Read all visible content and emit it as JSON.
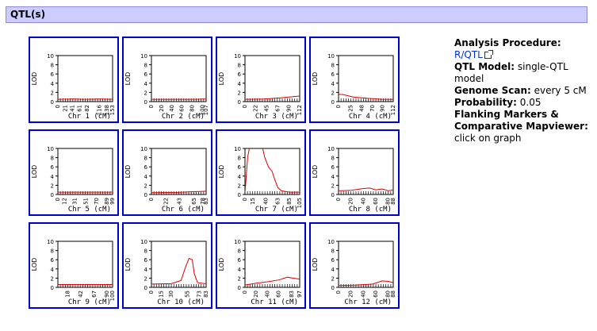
{
  "section": {
    "title": "QTL(s)"
  },
  "y_axis": {
    "label": "LOD",
    "ticks": [
      "10",
      "8",
      "6",
      "4",
      "2",
      "0"
    ],
    "max": 10
  },
  "panels": [
    {
      "chr_label": "Chr 1 (cM)",
      "x_ticks": [
        "0",
        "21",
        "41",
        "61",
        "82",
        "116",
        "138",
        "153"
      ],
      "max_cm": 153,
      "lod": [
        [
          0,
          0.5
        ],
        [
          40,
          0.55
        ],
        [
          80,
          0.5
        ],
        [
          120,
          0.55
        ],
        [
          153,
          0.5
        ]
      ]
    },
    {
      "chr_label": "Chr 2 (cM)",
      "x_ticks": [
        "0",
        "20",
        "40",
        "60",
        "80",
        "100",
        "107"
      ],
      "max_cm": 107,
      "lod": [
        [
          0,
          0.5
        ],
        [
          40,
          0.5
        ],
        [
          80,
          0.5
        ],
        [
          107,
          0.55
        ]
      ]
    },
    {
      "chr_label": "Chr 3 (cM)",
      "x_ticks": [
        "0",
        "22",
        "45",
        "67",
        "90",
        "112"
      ],
      "max_cm": 112,
      "lod": [
        [
          0,
          0.5
        ],
        [
          40,
          0.55
        ],
        [
          70,
          0.8
        ],
        [
          90,
          1.0
        ],
        [
          112,
          1.2
        ]
      ]
    },
    {
      "chr_label": "Chr 4 (cM)",
      "x_ticks": [
        "0",
        "25",
        "48",
        "70",
        "90",
        "112"
      ],
      "max_cm": 112,
      "lod": [
        [
          0,
          1.6
        ],
        [
          10,
          1.5
        ],
        [
          30,
          1.0
        ],
        [
          60,
          0.7
        ],
        [
          90,
          0.5
        ],
        [
          112,
          0.5
        ]
      ]
    },
    {
      "chr_label": "Chr 5 (cM)",
      "x_ticks": [
        "0",
        "12",
        "31",
        "51",
        "70",
        "89",
        "99"
      ],
      "max_cm": 99,
      "lod": [
        [
          0,
          0.5
        ],
        [
          50,
          0.5
        ],
        [
          99,
          0.5
        ]
      ]
    },
    {
      "chr_label": "Chr 6 (cM)",
      "x_ticks": [
        "0",
        "22",
        "43",
        "65",
        "78",
        "83"
      ],
      "max_cm": 83,
      "lod": [
        [
          0,
          0.4
        ],
        [
          40,
          0.45
        ],
        [
          65,
          0.6
        ],
        [
          83,
          0.7
        ]
      ]
    },
    {
      "chr_label": "Chr 7 (cM)",
      "x_ticks": [
        "0",
        "15",
        "40",
        "63",
        "85",
        "105"
      ],
      "max_cm": 105,
      "lod": [
        [
          0,
          0.3
        ],
        [
          5,
          8.0
        ],
        [
          10,
          11.0
        ],
        [
          20,
          13.0
        ],
        [
          30,
          12.0
        ],
        [
          38,
          8.0
        ],
        [
          45,
          6.0
        ],
        [
          52,
          5.0
        ],
        [
          58,
          3.0
        ],
        [
          63,
          1.5
        ],
        [
          70,
          0.8
        ],
        [
          85,
          0.5
        ],
        [
          105,
          0.5
        ]
      ]
    },
    {
      "chr_label": "Chr 8 (cM)",
      "x_ticks": [
        "0",
        "20",
        "40",
        "60",
        "80",
        "88"
      ],
      "max_cm": 88,
      "lod": [
        [
          0,
          0.8
        ],
        [
          20,
          0.9
        ],
        [
          40,
          1.3
        ],
        [
          50,
          1.4
        ],
        [
          60,
          1.0
        ],
        [
          70,
          1.2
        ],
        [
          80,
          0.8
        ],
        [
          88,
          1.0
        ]
      ]
    },
    {
      "chr_label": "Chr 9 (cM)",
      "x_ticks": [
        "18",
        "42",
        "67",
        "90",
        "100"
      ],
      "max_cm": 100,
      "lod": [
        [
          0,
          0.6
        ],
        [
          50,
          0.6
        ],
        [
          100,
          0.6
        ]
      ]
    },
    {
      "chr_label": "Chr 10 (cM)",
      "x_ticks": [
        "0",
        "15",
        "30",
        "55",
        "73",
        "83"
      ],
      "max_cm": 83,
      "lod": [
        [
          0,
          0.7
        ],
        [
          30,
          0.8
        ],
        [
          45,
          1.5
        ],
        [
          52,
          4.5
        ],
        [
          57,
          6.3
        ],
        [
          62,
          6.0
        ],
        [
          65,
          3.0
        ],
        [
          70,
          1.0
        ],
        [
          83,
          0.8
        ]
      ]
    },
    {
      "chr_label": "Chr 11 (cM)",
      "x_ticks": [
        "0",
        "20",
        "40",
        "60",
        "83",
        "97"
      ],
      "max_cm": 97,
      "lod": [
        [
          0,
          0.5
        ],
        [
          20,
          0.9
        ],
        [
          40,
          1.2
        ],
        [
          60,
          1.6
        ],
        [
          75,
          2.2
        ],
        [
          85,
          2.0
        ],
        [
          97,
          1.8
        ]
      ]
    },
    {
      "chr_label": "Chr 12 (cM)",
      "x_ticks": [
        "0",
        "20",
        "40",
        "60",
        "80",
        "88"
      ],
      "max_cm": 88,
      "lod": [
        [
          0,
          0.4
        ],
        [
          30,
          0.5
        ],
        [
          55,
          0.7
        ],
        [
          70,
          1.4
        ],
        [
          80,
          1.3
        ],
        [
          88,
          1.0
        ]
      ]
    }
  ],
  "info": {
    "analysis_label": "Analysis Procedure:",
    "analysis_link": "R/QTL",
    "model_label": "QTL Model:",
    "model_value": "single-QTL model",
    "scan_label": "Genome Scan:",
    "scan_value": "every 5 cM",
    "prob_label": "Probability:",
    "prob_value": "0.05",
    "flank_label": "Flanking Markers & Comparative Mapviewer:",
    "flank_value": "click on graph"
  },
  "colors": {
    "panel_border": "#0000cc",
    "curve": "#dd0000",
    "header_bg": "#ccccff"
  }
}
